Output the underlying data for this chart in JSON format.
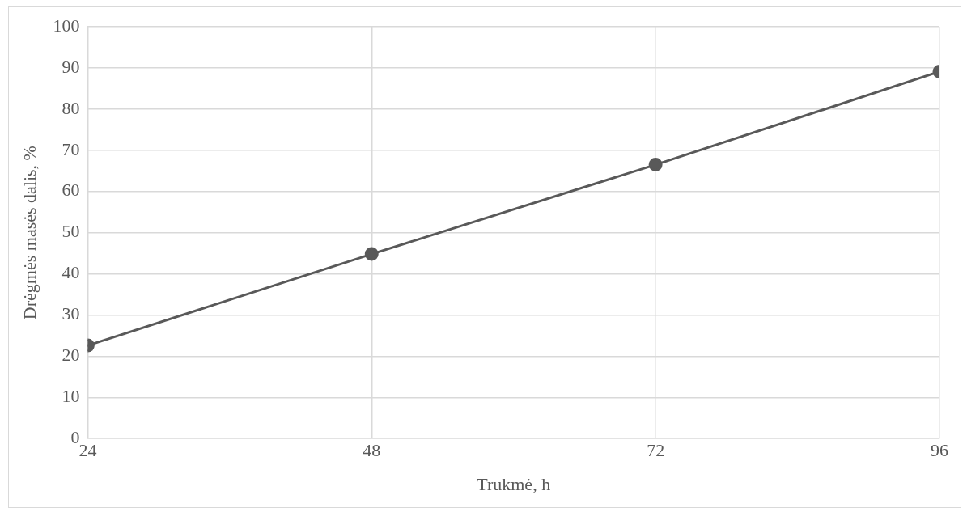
{
  "chart_data": {
    "type": "line",
    "xlabel": "Trukmė, h",
    "ylabel": "Drėgmės masės dalis, %",
    "x": [
      24,
      48,
      72,
      96
    ],
    "series": [
      {
        "color": "#595959",
        "values": [
          22.6,
          44.8,
          66.5,
          89.1
        ]
      }
    ],
    "xlim": [
      24,
      96
    ],
    "xticks": [
      24,
      48,
      72,
      96
    ],
    "ylim": [
      0,
      100
    ],
    "yticks": [
      0,
      10,
      20,
      30,
      40,
      50,
      60,
      70,
      80,
      90,
      100
    ],
    "grid": true,
    "legend": false,
    "marker": "circle",
    "line_style": "solid"
  }
}
